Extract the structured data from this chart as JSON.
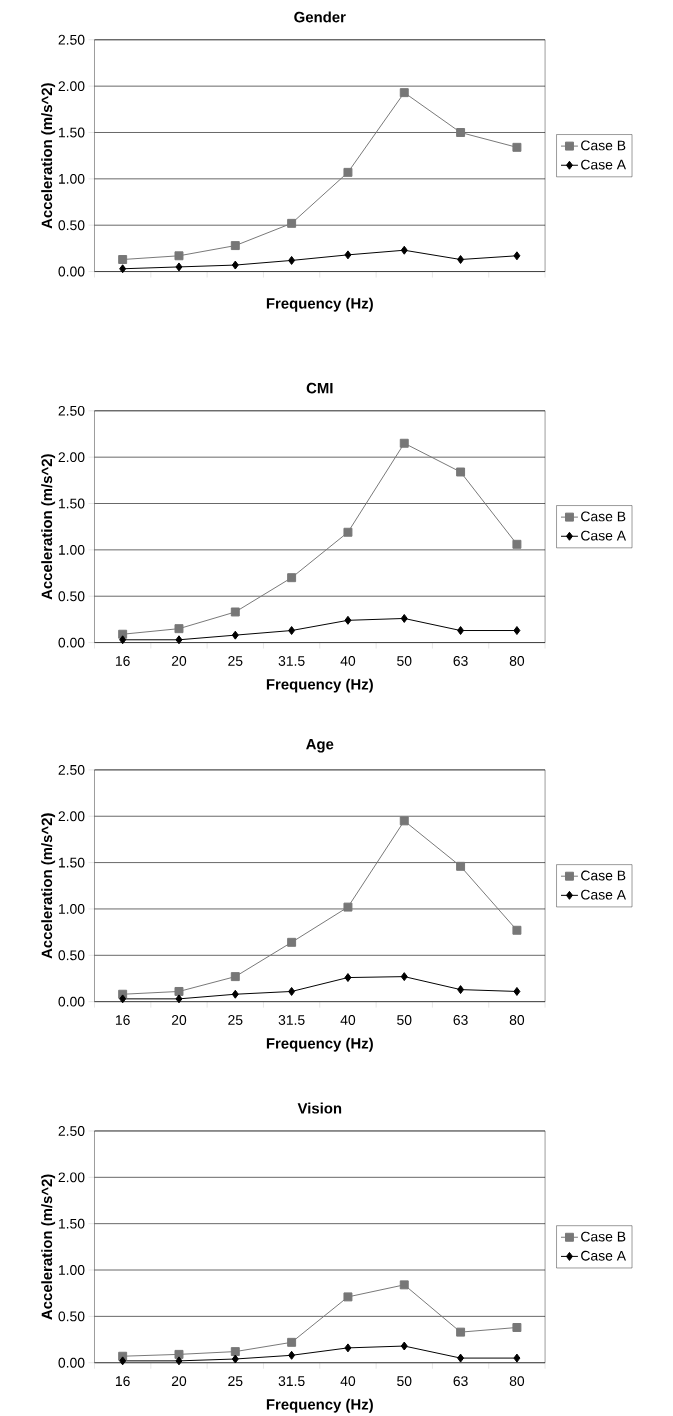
{
  "chart_data": [
    {
      "type": "line",
      "title": "Gender",
      "xlabel": "Frequency (Hz)",
      "ylabel": "Acceleration (m/s^2)",
      "categories": [
        null,
        null,
        null,
        null,
        null,
        null,
        null,
        null
      ],
      "series": [
        {
          "name": "Case A",
          "color": "#000000",
          "marker": "diamond",
          "values": [
            0.03,
            0.05,
            0.07,
            0.12,
            0.18,
            0.23,
            0.13,
            0.17
          ]
        },
        {
          "name": "Case B",
          "color": "#777777",
          "marker": "square",
          "values": [
            0.13,
            0.17,
            0.28,
            0.52,
            1.07,
            1.93,
            1.5,
            1.34
          ]
        }
      ],
      "ylim": [
        0,
        2.5
      ],
      "yticks": [
        {
          "value": 0,
          "label": "0.00"
        },
        {
          "value": 0.5,
          "label": "0.50"
        },
        {
          "value": 1,
          "label": "1.00"
        },
        {
          "value": 1.5,
          "label": "1.50"
        },
        {
          "value": 2,
          "label": "2.00"
        },
        {
          "value": 2.5,
          "label": "2.50"
        }
      ],
      "grid": "y",
      "legend": "right",
      "tick_labels": "y",
      "line_style": "solid"
    },
    {
      "type": "line",
      "title": "CMI",
      "xlabel": "Frequency (Hz)",
      "ylabel": "Acceleration (m/s^2)",
      "categories": [
        "16",
        "20",
        "25",
        "31.5",
        "40",
        "50",
        "63",
        "80"
      ],
      "series": [
        {
          "name": "Case A",
          "color": "#000000",
          "marker": "diamond",
          "values": [
            0.03,
            0.03,
            0.08,
            0.13,
            0.24,
            0.26,
            0.13,
            0.13
          ]
        },
        {
          "name": "Case B",
          "color": "#777777",
          "marker": "square",
          "values": [
            0.09,
            0.15,
            0.33,
            0.7,
            1.19,
            2.15,
            1.84,
            1.06
          ]
        }
      ],
      "ylim": [
        0,
        2.5
      ],
      "yticks": [
        {
          "value": 0,
          "label": "0.00"
        },
        {
          "value": 0.5,
          "label": "0.50"
        },
        {
          "value": 1,
          "label": "1.00"
        },
        {
          "value": 1.5,
          "label": "1.50"
        },
        {
          "value": 2,
          "label": "2.00"
        },
        {
          "value": 2.5,
          "label": "2.50"
        }
      ],
      "grid": "y",
      "legend": "right",
      "line_style": "solid"
    },
    {
      "type": "line",
      "title": "Age",
      "xlabel": "Frequency (Hz)",
      "ylabel": "Acceleration (m/s^2)",
      "categories": [
        "16",
        "20",
        "25",
        "31.5",
        "40",
        "50",
        "63",
        "80"
      ],
      "series": [
        {
          "name": "Case A",
          "color": "#000000",
          "marker": "diamond",
          "values": [
            0.03,
            0.03,
            0.08,
            0.11,
            0.26,
            0.27,
            0.13,
            0.11
          ]
        },
        {
          "name": "Case B",
          "color": "#777777",
          "marker": "square",
          "values": [
            0.08,
            0.11,
            0.27,
            0.64,
            1.02,
            1.95,
            1.46,
            0.77
          ]
        }
      ],
      "ylim": [
        0,
        2.5
      ],
      "yticks": [
        {
          "value": 0,
          "label": "0.00"
        },
        {
          "value": 0.5,
          "label": "0.50"
        },
        {
          "value": 1,
          "label": "1.00"
        },
        {
          "value": 1.5,
          "label": "1.50"
        },
        {
          "value": 2,
          "label": "2.00"
        },
        {
          "value": 2.5,
          "label": "2.50"
        }
      ],
      "grid": "y",
      "legend": "right",
      "line_style": "solid"
    },
    {
      "type": "line",
      "title": "Vision",
      "xlabel": "Frequency (Hz)",
      "ylabel": "Acceleration (m/s^2)",
      "categories": [
        "16",
        "20",
        "25",
        "31.5",
        "40",
        "50",
        "63",
        "80"
      ],
      "series": [
        {
          "name": "Case A",
          "color": "#000000",
          "marker": "diamond",
          "values": [
            0.02,
            0.02,
            0.04,
            0.08,
            0.16,
            0.18,
            0.05,
            0.05
          ]
        },
        {
          "name": "Case B",
          "color": "#777777",
          "marker": "square",
          "values": [
            0.07,
            0.09,
            0.12,
            0.22,
            0.71,
            0.84,
            0.33,
            0.38
          ]
        }
      ],
      "ylim": [
        0,
        2.5
      ],
      "yticks": [
        {
          "value": 0,
          "label": "0.00"
        },
        {
          "value": 0.5,
          "label": "0.50"
        },
        {
          "value": 1,
          "label": "1.00"
        },
        {
          "value": 1.5,
          "label": "1.50"
        },
        {
          "value": 2,
          "label": "2.00"
        },
        {
          "value": 2.5,
          "label": "2.50"
        }
      ],
      "grid": "y",
      "legend": "right",
      "line_style": "solid"
    }
  ]
}
